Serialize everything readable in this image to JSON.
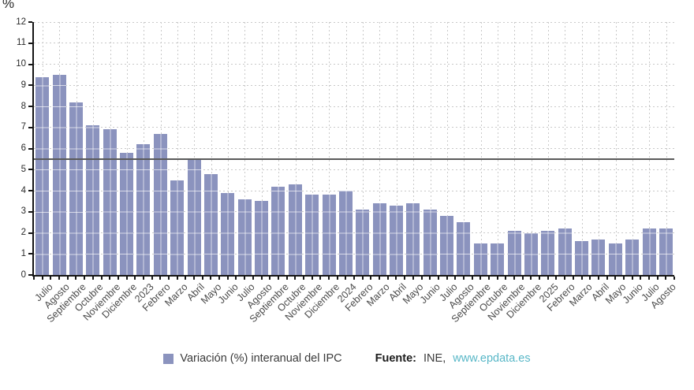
{
  "page": {
    "unit_label": "%"
  },
  "legend": {
    "swatch_color": "#8b93be",
    "label": "Variación (%) interanual del IPC"
  },
  "source": {
    "prefix": "Fuente:",
    "name": "INE,",
    "link": "www.epdata.es",
    "link_color": "#58b7c7"
  },
  "chart_data": {
    "type": "bar",
    "title": "",
    "xlabel": "",
    "ylabel": "%",
    "ylim": [
      0,
      12
    ],
    "ytick_step": 1,
    "yticks": [
      0,
      1,
      2,
      3,
      4,
      5,
      6,
      7,
      8,
      9,
      10,
      11,
      12
    ],
    "grid": true,
    "grid_style": "dashed",
    "bar_color": "#8b93be",
    "axis_color": "#151515",
    "reference_line": 5.5,
    "reference_line_color": "#5a5a5a",
    "legend_position": "bottom",
    "series_name": "Variación (%) interanual del IPC",
    "categories": [
      "Julio",
      "Agosto",
      "Septiembre",
      "Octubre",
      "Noviembre",
      "Diciembre",
      "2023",
      "Febrero",
      "Marzo",
      "Abril",
      "Mayo",
      "Junio",
      "Julio",
      "Agosto",
      "Septiembre",
      "Octubre",
      "Noviembre",
      "Diciembre",
      "2024",
      "Febrero",
      "Marzo",
      "Abril",
      "Mayo",
      "Junio",
      "Julio",
      "Agosto",
      "Septiembre",
      "Octubre",
      "Noviembre",
      "Diciembre",
      "2025",
      "Febrero",
      "Marzo",
      "Abril",
      "Mayo",
      "Junio",
      "Julio",
      "Agosto"
    ],
    "values": [
      9.4,
      9.5,
      8.2,
      7.1,
      6.9,
      5.8,
      6.2,
      6.7,
      4.5,
      5.5,
      4.8,
      3.9,
      3.6,
      3.5,
      4.2,
      4.3,
      3.8,
      3.8,
      4.0,
      3.1,
      3.4,
      3.3,
      3.4,
      3.1,
      2.8,
      2.5,
      1.5,
      1.5,
      2.1,
      2.0,
      2.1,
      2.2,
      1.6,
      1.7,
      1.5,
      1.7,
      2.2,
      2.2
    ]
  }
}
